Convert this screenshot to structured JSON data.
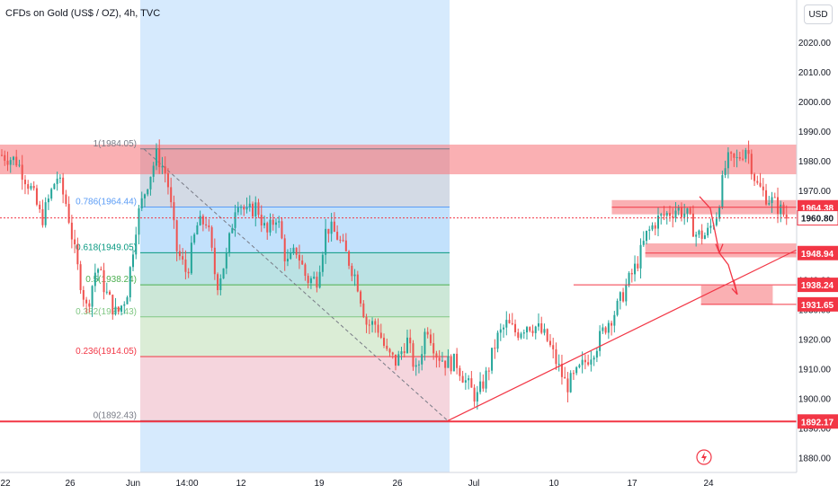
{
  "header": {
    "symbol_title": "CFDs on Gold (US$ / OZ), 4h, TVC",
    "currency": "USD"
  },
  "colors": {
    "bull": "#26a69a",
    "bear": "#ef5350",
    "zone_red": "#f77c80",
    "fib_blue": "#bbdefb",
    "trendline": "#f23645",
    "axis_text": "#131722",
    "last_price": "#f23645"
  },
  "chart_data": {
    "type": "candlestick",
    "title": "CFDs on Gold (US$ / OZ), 4h, TVC",
    "ylim": [
      1875,
      2030
    ],
    "yticks": [
      1880,
      1890,
      1900,
      1910,
      1920,
      1930,
      1940,
      1950,
      1960,
      1970,
      1980,
      1990,
      2000,
      2010,
      2020
    ],
    "ytick_labels": [
      "1880.00",
      "1890.00",
      "1900.00",
      "1910.00",
      "1920.00",
      "1930.00",
      "1940.00",
      "1950.00",
      "1960.00",
      "1970.00",
      "1980.00",
      "1990.00",
      "2000.00",
      "2010.00",
      "2020.00"
    ],
    "xticks": [
      "22",
      "26",
      "Jun",
      "14:00",
      "12",
      "19",
      "26",
      "Jul",
      "10",
      "17",
      "24"
    ],
    "close_path": [
      [
        0,
        1982
      ],
      [
        3,
        1980
      ],
      [
        6,
        1970
      ],
      [
        8,
        1960
      ],
      [
        11,
        1975
      ],
      [
        13,
        1965
      ],
      [
        15,
        1945
      ],
      [
        17,
        1930
      ],
      [
        19,
        1945
      ],
      [
        21,
        1935
      ],
      [
        23,
        1928
      ],
      [
        25,
        1935
      ],
      [
        27,
        1960
      ],
      [
        29,
        1972
      ],
      [
        31,
        1982
      ],
      [
        33,
        1975
      ],
      [
        35,
        1950
      ],
      [
        37,
        1942
      ],
      [
        39,
        1958
      ],
      [
        41,
        1960
      ],
      [
        43,
        1938
      ],
      [
        45,
        1948
      ],
      [
        47,
        1968
      ],
      [
        49,
        1962
      ],
      [
        51,
        1965
      ],
      [
        53,
        1955
      ],
      [
        55,
        1962
      ],
      [
        57,
        1945
      ],
      [
        59,
        1950
      ],
      [
        61,
        1940
      ],
      [
        63,
        1940
      ],
      [
        65,
        1958
      ],
      [
        67,
        1955
      ],
      [
        69,
        1948
      ],
      [
        71,
        1940
      ],
      [
        73,
        1925
      ],
      [
        75,
        1925
      ],
      [
        77,
        1915
      ],
      [
        79,
        1912
      ],
      [
        81,
        1920
      ],
      [
        83,
        1908
      ],
      [
        85,
        1925
      ],
      [
        87,
        1915
      ],
      [
        89,
        1912
      ],
      [
        91,
        1912
      ],
      [
        93,
        1905
      ],
      [
        95,
        1900
      ],
      [
        97,
        1908
      ],
      [
        99,
        1920
      ],
      [
        101,
        1925
      ],
      [
        103,
        1922
      ],
      [
        105,
        1925
      ],
      [
        107,
        1924
      ],
      [
        109,
        1920
      ],
      [
        111,
        1912
      ],
      [
        113,
        1904
      ],
      [
        115,
        1908
      ],
      [
        117,
        1913
      ],
      [
        119,
        1918
      ],
      [
        121,
        1925
      ],
      [
        123,
        1930
      ],
      [
        125,
        1938
      ],
      [
        127,
        1945
      ],
      [
        129,
        1955
      ],
      [
        131,
        1960
      ],
      [
        133,
        1962
      ],
      [
        135,
        1964
      ],
      [
        137,
        1962
      ],
      [
        139,
        1955
      ],
      [
        141,
        1955
      ],
      [
        143,
        1962
      ],
      [
        145,
        1980
      ],
      [
        147,
        1980
      ],
      [
        149,
        1985
      ],
      [
        151,
        1972
      ],
      [
        153,
        1968
      ],
      [
        155,
        1965
      ],
      [
        157,
        1961
      ]
    ],
    "horizontal_zones": [
      {
        "name": "resistance-zone",
        "from": 1975.5,
        "to": 1985.5,
        "x_start": 0,
        "x_end": 1,
        "color": "#f77c80"
      },
      {
        "name": "zone-1964",
        "from": 1962,
        "to": 1966.8,
        "x_start": 0.768,
        "x_end": 1,
        "color": "#f77c80"
      },
      {
        "name": "zone-1948",
        "from": 1947.5,
        "to": 1952.2,
        "x_start": 0.81,
        "x_end": 1,
        "color": "#f77c80"
      },
      {
        "name": "zone-1938",
        "from": 1931.5,
        "to": 1938,
        "x_start": 0.88,
        "x_end": 0.97,
        "color": "#f77c80"
      }
    ],
    "horizontal_levels": [
      {
        "name": "level-1964.38",
        "value": 1964.38,
        "label": "1964.38",
        "x_start": 0.768,
        "color": "#f23645"
      },
      {
        "name": "level-1960.80",
        "value": 1960.8,
        "label": "1960.80",
        "x_start": 0,
        "color": "#f23645",
        "dashed": true
      },
      {
        "name": "level-1948.94",
        "value": 1948.94,
        "label": "1948.94",
        "x_start": 0.81,
        "color": "#f23645"
      },
      {
        "name": "level-1938.24",
        "value": 1938.24,
        "label": "1938.24",
        "x_start": 0.72,
        "color": "#f23645"
      },
      {
        "name": "level-1931.65",
        "value": 1931.65,
        "label": "1931.65",
        "x_start": 0.88,
        "color": "#f23645"
      },
      {
        "name": "level-1892.17",
        "value": 1892.17,
        "label": "1892.17",
        "x_start": 0,
        "color": "#f23645"
      }
    ],
    "fibonacci": {
      "high": 1984.05,
      "low": 1892.43,
      "levels": [
        {
          "ratio": 1,
          "value": 1984.05,
          "label": "1(1984.05)",
          "color": "#787b86"
        },
        {
          "ratio": 0.786,
          "value": 1964.44,
          "label": "0.786(1964.44)",
          "color": "#5b9cf6"
        },
        {
          "ratio": 0.618,
          "value": 1949.05,
          "label": "0.618(1949.05)",
          "color": "#089981"
        },
        {
          "ratio": 0.5,
          "value": 1938.24,
          "label": "0.5(1938.24)",
          "color": "#4caf50"
        },
        {
          "ratio": 0.382,
          "value": 1927.43,
          "label": "0.382(1927.43)",
          "color": "#81c784"
        },
        {
          "ratio": 0.236,
          "value": 1914.05,
          "label": "0.236(1914.05)",
          "color": "#f23645"
        },
        {
          "ratio": 0,
          "value": 1892.43,
          "label": "0(1892.43)",
          "color": "#787b86"
        }
      ]
    },
    "trendline": {
      "from": 1892.43,
      "to": 1950,
      "color": "#f23645"
    },
    "last_price": 1960.8
  }
}
